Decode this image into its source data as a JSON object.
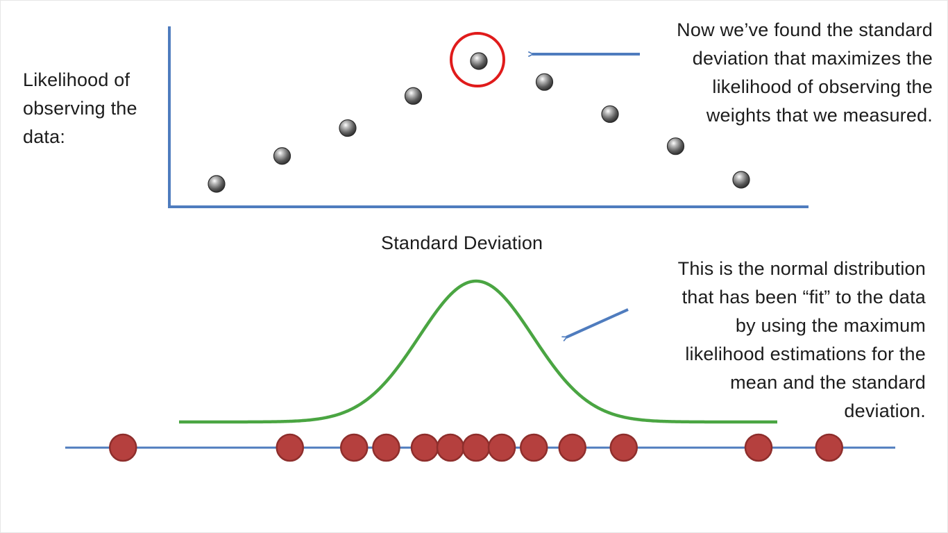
{
  "top_plot": {
    "y_label_lines": [
      "Likelihood of",
      "observing the",
      "data:"
    ],
    "x_label": "Standard Deviation",
    "callout_lines": [
      "Now we’ve found the standard",
      "deviation that maximizes the",
      "likelihood of observing the",
      "weights that we measured."
    ],
    "highlighted_index": 4,
    "likelihood_points": [
      {
        "sd_step": 1,
        "likelihood": 0.09
      },
      {
        "sd_step": 2,
        "likelihood": 0.29
      },
      {
        "sd_step": 3,
        "likelihood": 0.49
      },
      {
        "sd_step": 4,
        "likelihood": 0.72
      },
      {
        "sd_step": 5,
        "likelihood": 0.97
      },
      {
        "sd_step": 6,
        "likelihood": 0.82
      },
      {
        "sd_step": 7,
        "likelihood": 0.59
      },
      {
        "sd_step": 8,
        "likelihood": 0.36
      },
      {
        "sd_step": 9,
        "likelihood": 0.12
      }
    ]
  },
  "bottom_plot": {
    "callout_lines": [
      "This is the normal distribution",
      "that has been “fit” to the data",
      "by using the maximum",
      "likelihood estimations for the",
      "mean and the standard",
      "deviation."
    ],
    "measured_weights": [
      -0.55,
      -0.29,
      -0.19,
      -0.14,
      -0.08,
      -0.04,
      0.0,
      0.04,
      0.09,
      0.15,
      0.23,
      0.44,
      0.55
    ]
  },
  "colors": {
    "axis": "#4f7cbe",
    "arrow": "#4f7cbe",
    "curve": "#4aa542",
    "weight_point": "#b5403e",
    "weight_point_edge": "#8e2e2c",
    "likelihood_point": "#5a5a5a",
    "highlight_ring": "#e01b1b"
  }
}
